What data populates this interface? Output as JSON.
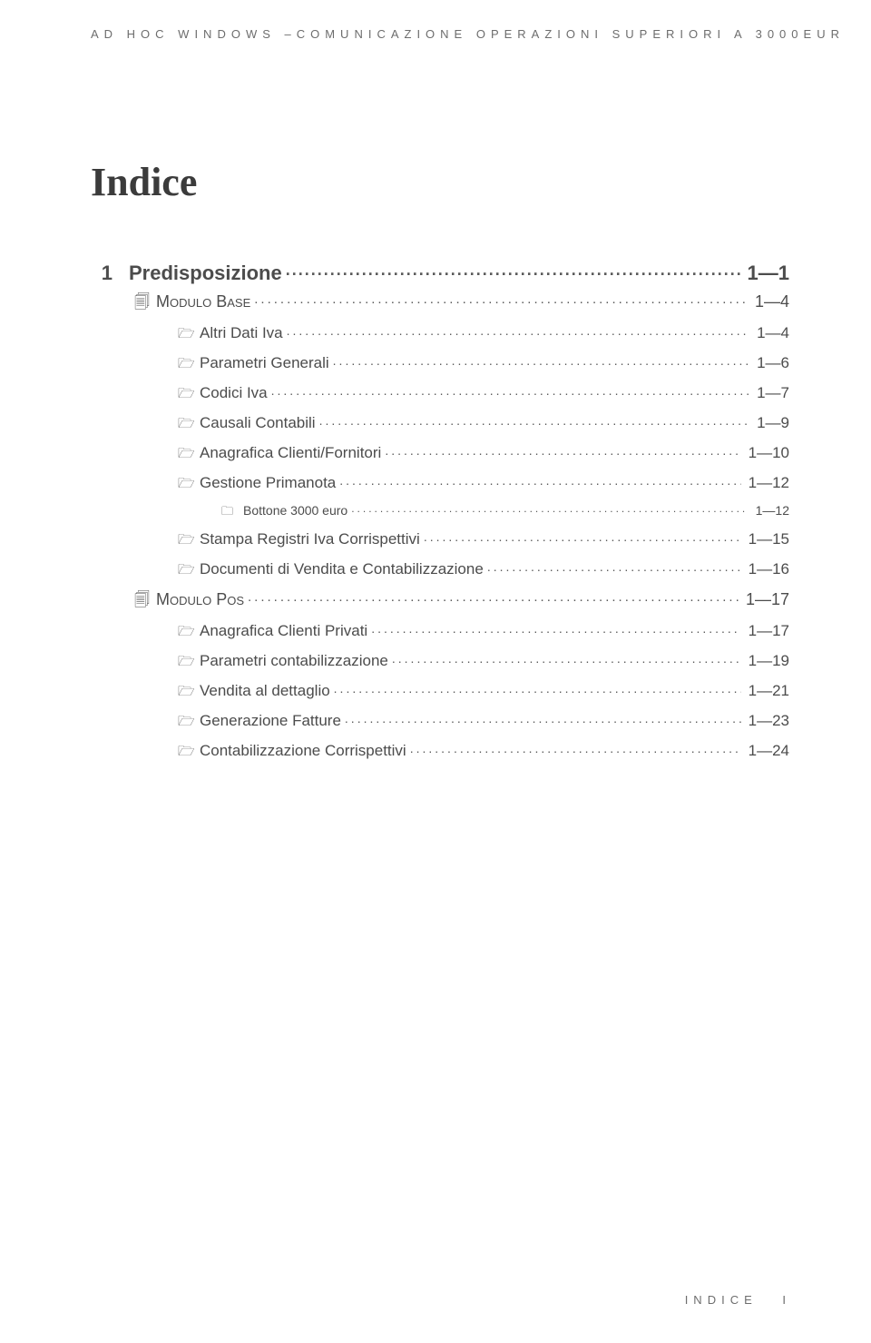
{
  "header": {
    "text": "AD HOC WINDOWS –COMUNICAZIONE OPERAZIONI SUPERIORI A 3000EUR"
  },
  "title": "Indice",
  "icons": {
    "doc": "🗐",
    "folder_open": "🗁",
    "folder_closed": "🗀"
  },
  "toc": {
    "section_number": "1",
    "section_label": "Predisposizione",
    "section_page": "1—1",
    "entries": [
      {
        "level": 2,
        "icon": "doc",
        "label": "Modulo Base",
        "page": "1—4"
      },
      {
        "level": 3,
        "icon": "folder_open",
        "label": "Altri Dati Iva",
        "page": "1—4"
      },
      {
        "level": 3,
        "icon": "folder_open",
        "label": "Parametri Generali",
        "page": "1—6"
      },
      {
        "level": 3,
        "icon": "folder_open",
        "label": "Codici Iva",
        "page": "1—7"
      },
      {
        "level": 3,
        "icon": "folder_open",
        "label": "Causali Contabili",
        "page": "1—9"
      },
      {
        "level": 3,
        "icon": "folder_open",
        "label": "Anagrafica Clienti/Fornitori",
        "page": "1—10"
      },
      {
        "level": 3,
        "icon": "folder_open",
        "label": "Gestione Primanota",
        "page": "1—12"
      },
      {
        "level": 4,
        "icon": "folder_closed",
        "label": "Bottone 3000 euro",
        "page": "1—12"
      },
      {
        "level": 3,
        "icon": "folder_open",
        "label": "Stampa Registri Iva Corrispettivi",
        "page": "1—15"
      },
      {
        "level": 3,
        "icon": "folder_open",
        "label": "Documenti di Vendita e Contabilizzazione",
        "page": "1—16"
      },
      {
        "level": 2,
        "icon": "doc",
        "label": "Modulo Pos",
        "page": "1—17"
      },
      {
        "level": 3,
        "icon": "folder_open",
        "label": "Anagrafica Clienti Privati",
        "page": "1—17"
      },
      {
        "level": 3,
        "icon": "folder_open",
        "label": "Parametri contabilizzazione",
        "page": "1—19"
      },
      {
        "level": 3,
        "icon": "folder_open",
        "label": "Vendita al dettaglio",
        "page": "1—21"
      },
      {
        "level": 3,
        "icon": "folder_open",
        "label": "Generazione Fatture",
        "page": "1—23"
      },
      {
        "level": 3,
        "icon": "folder_open",
        "label": "Contabilizzazione Corrispettivi",
        "page": "1—24"
      }
    ]
  },
  "footer": {
    "label": "INDICE",
    "page_number": "I"
  },
  "style": {
    "text_color": "#4c4c4c",
    "header_color": "#6d6d6d",
    "background": "#ffffff"
  }
}
